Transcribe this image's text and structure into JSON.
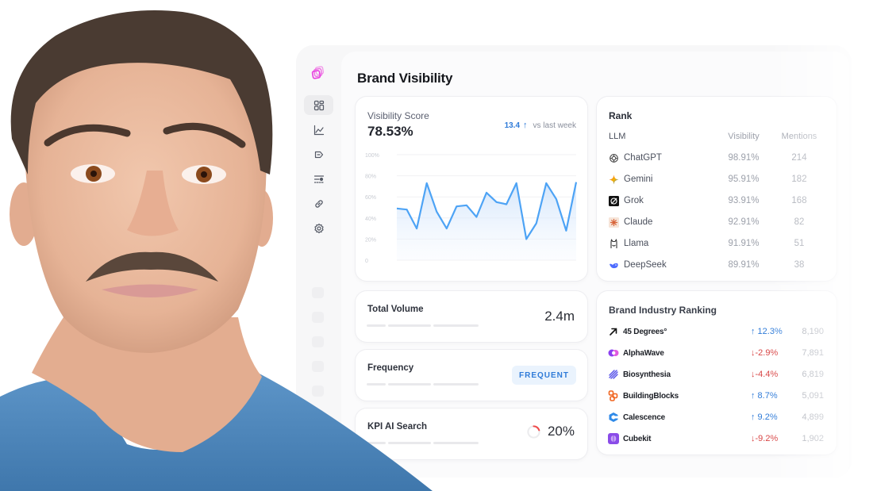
{
  "page": {
    "title": "Brand Visibility"
  },
  "sidebar": {
    "logo": "layers-logo-icon",
    "items": [
      {
        "name": "dashboard",
        "icon": "grid-icon",
        "active": true
      },
      {
        "name": "analytics",
        "icon": "line-chart-icon",
        "active": false
      },
      {
        "name": "tags",
        "icon": "tag-icon",
        "active": false
      },
      {
        "name": "filters",
        "icon": "sliders-icon",
        "active": false
      },
      {
        "name": "links",
        "icon": "link-icon",
        "active": false
      },
      {
        "name": "settings",
        "icon": "gear-icon",
        "active": false
      }
    ]
  },
  "visibility": {
    "label": "Visibility Score",
    "score": "78.53%",
    "delta_value": "13.4",
    "delta_arrow": "↑",
    "delta_text": "vs last week",
    "line_color": "#4da3f5"
  },
  "chart_data": {
    "type": "line",
    "title": "Visibility Score",
    "xlabel": "",
    "ylabel": "",
    "ylim": [
      0,
      100
    ],
    "yticks": [
      "0",
      "20%",
      "40%",
      "60%",
      "80%",
      "100%"
    ],
    "grid": true,
    "x": [
      1,
      2,
      3,
      4,
      5,
      6,
      7,
      8,
      9,
      10,
      11,
      12,
      13,
      14,
      15,
      16,
      17,
      18,
      19
    ],
    "values": [
      49,
      48,
      30,
      73,
      46,
      30,
      51,
      52,
      41,
      64,
      55,
      53,
      73,
      20,
      35,
      73,
      58,
      28,
      74
    ]
  },
  "rank": {
    "title": "Rank",
    "headers": {
      "llm": "LLM",
      "visibility": "Visibility",
      "mentions": "Mentions"
    },
    "rows": [
      {
        "name": "ChatGPT",
        "icon": "chatgpt-icon",
        "visibility": "98.91%",
        "mentions": "214"
      },
      {
        "name": "Gemini",
        "icon": "gemini-icon",
        "visibility": "95.91%",
        "mentions": "182"
      },
      {
        "name": "Grok",
        "icon": "grok-icon",
        "visibility": "93.91%",
        "mentions": "168"
      },
      {
        "name": "Claude",
        "icon": "claude-icon",
        "visibility": "92.91%",
        "mentions": "82"
      },
      {
        "name": "Llama",
        "icon": "llama-icon",
        "visibility": "91.91%",
        "mentions": "51"
      },
      {
        "name": "DeepSeek",
        "icon": "deepseek-icon",
        "visibility": "89.91%",
        "mentions": "38"
      }
    ]
  },
  "metrics": {
    "total_volume": {
      "label": "Total Volume",
      "value": "2.4m"
    },
    "frequency": {
      "label": "Frequency",
      "badge": "FREQUENT"
    },
    "kpi": {
      "label": "KPI AI Search",
      "value": "20%",
      "percent": 20
    }
  },
  "industry": {
    "title": "Brand Industry Ranking",
    "rows": [
      {
        "name": "45 Degrees°",
        "icon": "arrow-up-right-icon",
        "change": "↑ 12.3%",
        "direction": "up",
        "count": "8,190"
      },
      {
        "name": "AlphaWave",
        "icon": "alphawave-icon",
        "change": "↓-2.9%",
        "direction": "down",
        "count": "7,891"
      },
      {
        "name": "Biosynthesia",
        "icon": "biosynthesia-icon",
        "change": "↓-4.4%",
        "direction": "down",
        "count": "6,819"
      },
      {
        "name": "BuildingBlocks",
        "icon": "buildingblocks-icon",
        "change": "↑ 8.7%",
        "direction": "up",
        "count": "5,091"
      },
      {
        "name": "Calescence",
        "icon": "calescence-icon",
        "change": "↑ 9.2%",
        "direction": "up",
        "count": "4,899"
      },
      {
        "name": "Cubekit",
        "icon": "cubekit-icon",
        "change": "↓-9.2%",
        "direction": "down",
        "count": "1,902"
      }
    ]
  },
  "colors": {
    "accent_blue": "#2f7bd8",
    "negative_red": "#d84545",
    "logo_pink": "#e83ee0"
  }
}
